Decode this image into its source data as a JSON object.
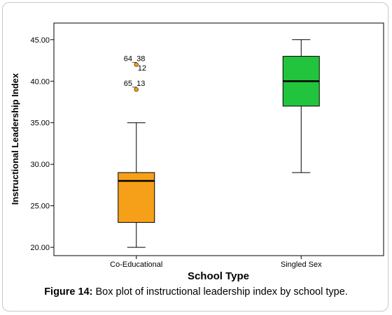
{
  "figure_caption": {
    "label": "Figure 14:",
    "text": " Box plot of instructional leadership index by school type."
  },
  "chart_data": {
    "type": "boxplot",
    "xlabel": "School Type",
    "ylabel": "Instructional Leadership Index",
    "ylim": [
      19.0,
      47.0
    ],
    "yticks": [
      "20.00",
      "25.00",
      "30.00",
      "35.00",
      "40.00",
      "45.00"
    ],
    "grid": false,
    "categories": [
      "Co-Educational",
      "Singled Sex"
    ],
    "boxes": [
      {
        "category": "Co-Educational",
        "whisker_low": 20,
        "q1": 23,
        "median": 28,
        "q3": 29,
        "whisker_high": 35,
        "color": "#f6a01a",
        "outliers": [
          {
            "value": 42,
            "label": "64_38"
          },
          {
            "value": 41.6,
            "label": "12"
          },
          {
            "value": 39,
            "label": "65_13"
          }
        ]
      },
      {
        "category": "Singled Sex",
        "whisker_low": 29,
        "q1": 37,
        "median": 40,
        "q3": 43,
        "whisker_high": 45,
        "color": "#22c33d",
        "outliers": []
      }
    ]
  }
}
